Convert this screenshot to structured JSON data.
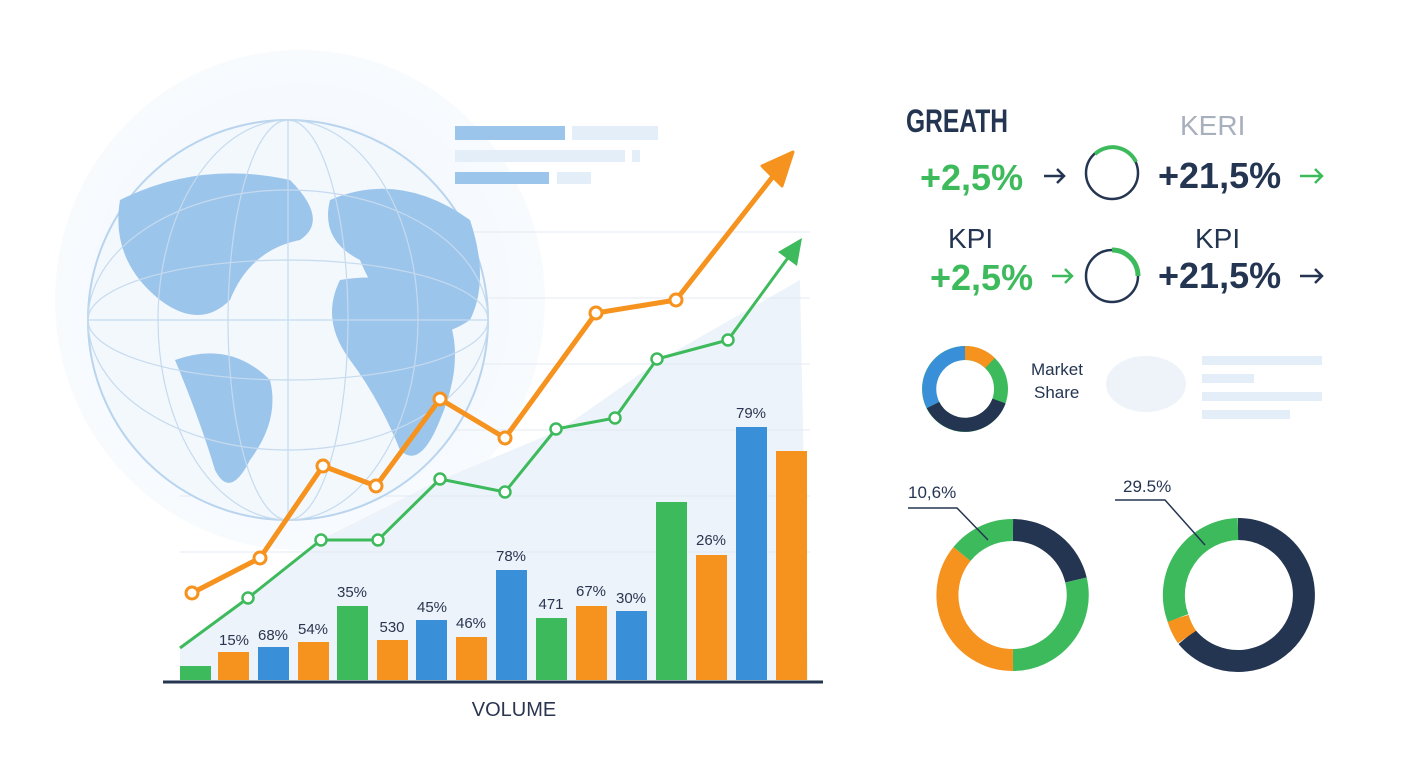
{
  "kpi_panel": {
    "title_left": "GREATH",
    "title_right": "KERI",
    "row1": {
      "left_value": "+2,5%",
      "right_value": "+21,5%"
    },
    "row2": {
      "left_label": "KPI",
      "right_label": "KPI",
      "left_value": "+2,5%",
      "right_value": "+21,5%"
    },
    "market_share": [
      "Market",
      "Share"
    ],
    "donut_left_label": "10,6%",
    "donut_right_label": "29.5%"
  },
  "volume_chart": {
    "axis_label": "VOLUME",
    "bar_labels": [
      "15%",
      "68%",
      "54%",
      "35%",
      "530",
      "45%",
      "46%",
      "78%",
      "471",
      "67%",
      "30%",
      "26%",
      "79%"
    ]
  }
}
